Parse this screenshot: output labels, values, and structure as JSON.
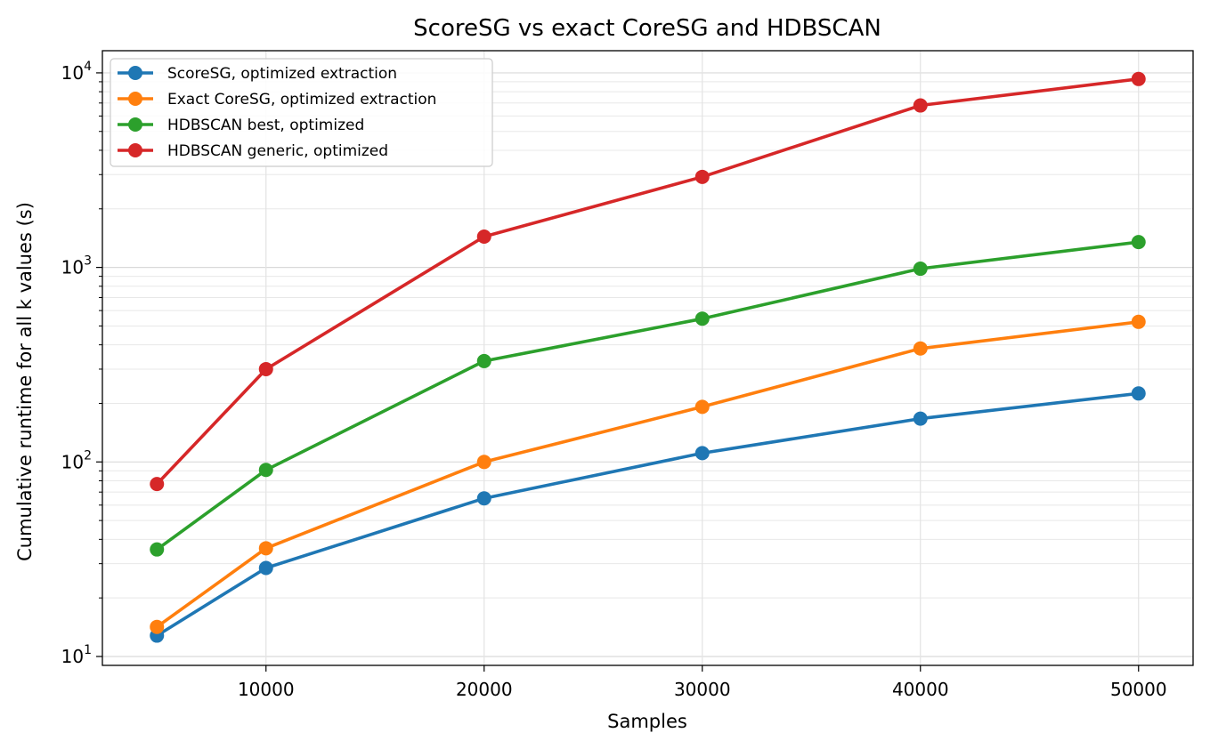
{
  "chart_data": {
    "type": "line",
    "title": "ScoreSG vs exact CoreSG and HDBSCAN",
    "xlabel": "Samples",
    "ylabel": "Cumulative runtime for all k values (s)",
    "xscale": "linear",
    "yscale": "log",
    "xlim": [
      2500,
      52500
    ],
    "ylim": [
      9,
      13000
    ],
    "xticks": [
      10000,
      20000,
      30000,
      40000,
      50000
    ],
    "xtick_labels": [
      "10000",
      "20000",
      "30000",
      "40000",
      "50000"
    ],
    "yticks": [
      10,
      100,
      1000,
      10000
    ],
    "ytick_labels": [
      {
        "base": "10",
        "exp": "1"
      },
      {
        "base": "10",
        "exp": "2"
      },
      {
        "base": "10",
        "exp": "3"
      },
      {
        "base": "10",
        "exp": "4"
      }
    ],
    "grid": "on (major and minor)",
    "legend_position": "top-left",
    "x": [
      5000,
      10000,
      20000,
      30000,
      40000,
      50000
    ],
    "series": [
      {
        "name": "ScoreSG, optimized extraction",
        "color": "#1f77b4",
        "values": [
          12.8,
          28.5,
          65,
          111,
          167,
          225
        ]
      },
      {
        "name": "Exact CoreSG, optimized extraction",
        "color": "#ff7f0e",
        "values": [
          14.2,
          36,
          100,
          192,
          383,
          525
        ]
      },
      {
        "name": "HDBSCAN best, optimized",
        "color": "#2ca02c",
        "values": [
          35.5,
          91,
          330,
          545,
          985,
          1350
        ]
      },
      {
        "name": "HDBSCAN generic, optimized",
        "color": "#d62728",
        "values": [
          77,
          300,
          1440,
          2920,
          6800,
          9300
        ]
      }
    ]
  }
}
